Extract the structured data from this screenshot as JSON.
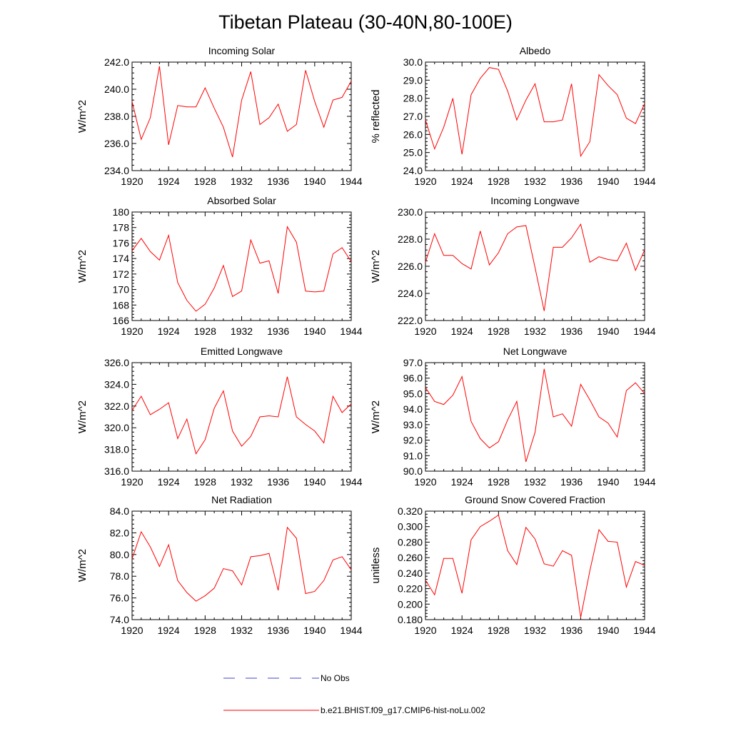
{
  "figure": {
    "title": "Tibetan Plateau (30-40N,80-100E)"
  },
  "legend": {
    "items": [
      {
        "label": "No Obs",
        "color": "#4444cc",
        "style": "dashed"
      },
      {
        "label": "b.e21.BHIST.f09_g17.CMIP6-hist-noLu.002",
        "color": "#ff0000",
        "style": "solid"
      }
    ]
  },
  "chart_data": [
    {
      "type": "line",
      "title": "Incoming Solar",
      "ylabel": "W/m^2",
      "xlim": [
        1920,
        1944
      ],
      "ylim": [
        234.0,
        242.0
      ],
      "yticks": [
        234.0,
        236.0,
        238.0,
        240.0,
        242.0
      ],
      "ytick_labels": [
        "234.0",
        "236.0",
        "238.0",
        "240.0",
        "242.0"
      ],
      "xticks": [
        1920,
        1924,
        1928,
        1932,
        1936,
        1940,
        1944
      ],
      "x": [
        1920,
        1921,
        1922,
        1923,
        1924,
        1925,
        1926,
        1927,
        1928,
        1929,
        1930,
        1931,
        1932,
        1933,
        1934,
        1935,
        1936,
        1937,
        1938,
        1939,
        1940,
        1941,
        1942,
        1943,
        1944
      ],
      "series": [
        {
          "name": "b.e21.BHIST.f09_g17.CMIP6-hist-noLu.002",
          "color": "#ff0000",
          "values": [
            239.1,
            236.3,
            237.9,
            241.7,
            235.9,
            238.8,
            238.7,
            238.7,
            240.1,
            238.6,
            237.2,
            235.0,
            239.2,
            241.3,
            237.4,
            237.9,
            238.9,
            236.9,
            237.4,
            241.4,
            239.1,
            237.2,
            239.2,
            239.4,
            240.6
          ]
        }
      ]
    },
    {
      "type": "line",
      "title": "Albedo",
      "ylabel": "% reflected",
      "xlim": [
        1920,
        1944
      ],
      "ylim": [
        24.0,
        30.0
      ],
      "yticks": [
        24.0,
        25.0,
        26.0,
        27.0,
        28.0,
        29.0,
        30.0
      ],
      "ytick_labels": [
        "24.0",
        "25.0",
        "26.0",
        "27.0",
        "28.0",
        "29.0",
        "30.0"
      ],
      "xticks": [
        1920,
        1924,
        1928,
        1932,
        1936,
        1940,
        1944
      ],
      "x": [
        1920,
        1921,
        1922,
        1923,
        1924,
        1925,
        1926,
        1927,
        1928,
        1929,
        1930,
        1931,
        1932,
        1933,
        1934,
        1935,
        1936,
        1937,
        1938,
        1939,
        1940,
        1941,
        1942,
        1943,
        1944
      ],
      "series": [
        {
          "name": "b.e21.BHIST.f09_g17.CMIP6-hist-noLu.002",
          "color": "#ff0000",
          "values": [
            26.8,
            25.2,
            26.4,
            28.0,
            24.9,
            28.2,
            29.1,
            29.7,
            29.6,
            28.4,
            26.8,
            27.9,
            28.8,
            26.7,
            26.7,
            26.8,
            28.8,
            24.8,
            25.6,
            29.3,
            28.7,
            28.2,
            26.9,
            26.6,
            27.7
          ]
        }
      ]
    },
    {
      "type": "line",
      "title": "Absorbed Solar",
      "ylabel": "W/m^2",
      "xlim": [
        1920,
        1944
      ],
      "ylim": [
        166,
        180
      ],
      "yticks": [
        166,
        168,
        170,
        172,
        174,
        176,
        178,
        180
      ],
      "ytick_labels": [
        "166",
        "168",
        "170",
        "172",
        "174",
        "176",
        "178",
        "180"
      ],
      "xticks": [
        1920,
        1924,
        1928,
        1932,
        1936,
        1940,
        1944
      ],
      "x": [
        1920,
        1921,
        1922,
        1923,
        1924,
        1925,
        1926,
        1927,
        1928,
        1929,
        1930,
        1931,
        1932,
        1933,
        1934,
        1935,
        1936,
        1937,
        1938,
        1939,
        1940,
        1941,
        1942,
        1943,
        1944
      ],
      "series": [
        {
          "name": "b.e21.BHIST.f09_g17.CMIP6-hist-noLu.002",
          "color": "#ff0000",
          "values": [
            175.0,
            176.6,
            174.9,
            173.8,
            177.0,
            170.9,
            168.6,
            167.2,
            168.1,
            170.2,
            173.1,
            169.1,
            169.8,
            176.4,
            173.4,
            173.7,
            169.5,
            178.1,
            176.1,
            169.8,
            169.7,
            169.8,
            174.6,
            175.4,
            173.6
          ]
        }
      ]
    },
    {
      "type": "line",
      "title": "Incoming Longwave",
      "ylabel": "W/m^2",
      "xlim": [
        1920,
        1944
      ],
      "ylim": [
        222.0,
        230.0
      ],
      "yticks": [
        222.0,
        224.0,
        226.0,
        228.0,
        230.0
      ],
      "ytick_labels": [
        "222.0",
        "224.0",
        "226.0",
        "228.0",
        "230.0"
      ],
      "xticks": [
        1920,
        1924,
        1928,
        1932,
        1936,
        1940,
        1944
      ],
      "x": [
        1920,
        1921,
        1922,
        1923,
        1924,
        1925,
        1926,
        1927,
        1928,
        1929,
        1930,
        1931,
        1932,
        1933,
        1934,
        1935,
        1936,
        1937,
        1938,
        1939,
        1940,
        1941,
        1942,
        1943,
        1944
      ],
      "series": [
        {
          "name": "b.e21.BHIST.f09_g17.CMIP6-hist-noLu.002",
          "color": "#ff0000",
          "values": [
            226.3,
            228.4,
            226.8,
            226.8,
            226.2,
            225.8,
            228.6,
            226.1,
            227.0,
            228.4,
            228.9,
            229.0,
            225.9,
            222.7,
            227.4,
            227.4,
            228.1,
            229.1,
            226.3,
            226.7,
            226.5,
            226.4,
            227.7,
            225.7,
            227.2
          ]
        }
      ]
    },
    {
      "type": "line",
      "title": "Emitted Longwave",
      "ylabel": "W/m^2",
      "xlim": [
        1920,
        1944
      ],
      "ylim": [
        316.0,
        326.0
      ],
      "yticks": [
        316.0,
        318.0,
        320.0,
        322.0,
        324.0,
        326.0
      ],
      "ytick_labels": [
        "316.0",
        "318.0",
        "320.0",
        "322.0",
        "324.0",
        "326.0"
      ],
      "xticks": [
        1920,
        1924,
        1928,
        1932,
        1936,
        1940,
        1944
      ],
      "x": [
        1920,
        1921,
        1922,
        1923,
        1924,
        1925,
        1926,
        1927,
        1928,
        1929,
        1930,
        1931,
        1932,
        1933,
        1934,
        1935,
        1936,
        1937,
        1938,
        1939,
        1940,
        1941,
        1942,
        1943,
        1944
      ],
      "series": [
        {
          "name": "b.e21.BHIST.f09_g17.CMIP6-hist-noLu.002",
          "color": "#ff0000",
          "values": [
            321.6,
            322.9,
            321.2,
            321.7,
            322.3,
            319.0,
            320.8,
            317.6,
            318.9,
            321.8,
            323.4,
            319.7,
            318.3,
            319.2,
            321.0,
            321.1,
            321.0,
            324.7,
            321.0,
            320.3,
            319.7,
            318.6,
            322.9,
            321.4,
            322.2
          ]
        }
      ]
    },
    {
      "type": "line",
      "title": "Net Longwave",
      "ylabel": "W/m^2",
      "xlim": [
        1920,
        1944
      ],
      "ylim": [
        90.0,
        97.0
      ],
      "yticks": [
        90.0,
        91.0,
        92.0,
        93.0,
        94.0,
        95.0,
        96.0,
        97.0
      ],
      "ytick_labels": [
        "90.0",
        "91.0",
        "92.0",
        "93.0",
        "94.0",
        "95.0",
        "96.0",
        "97.0"
      ],
      "xticks": [
        1920,
        1924,
        1928,
        1932,
        1936,
        1940,
        1944
      ],
      "x": [
        1920,
        1921,
        1922,
        1923,
        1924,
        1925,
        1926,
        1927,
        1928,
        1929,
        1930,
        1931,
        1932,
        1933,
        1934,
        1935,
        1936,
        1937,
        1938,
        1939,
        1940,
        1941,
        1942,
        1943,
        1944
      ],
      "series": [
        {
          "name": "b.e21.BHIST.f09_g17.CMIP6-hist-noLu.002",
          "color": "#ff0000",
          "values": [
            95.4,
            94.5,
            94.3,
            94.9,
            96.1,
            93.2,
            92.1,
            91.5,
            91.9,
            93.3,
            94.5,
            90.6,
            92.5,
            96.6,
            93.5,
            93.7,
            92.9,
            95.6,
            94.6,
            93.5,
            93.1,
            92.2,
            95.2,
            95.7,
            95.0
          ]
        }
      ]
    },
    {
      "type": "line",
      "title": "Net Radiation",
      "ylabel": "W/m^2",
      "xlim": [
        1920,
        1944
      ],
      "ylim": [
        74.0,
        84.0
      ],
      "yticks": [
        74.0,
        76.0,
        78.0,
        80.0,
        82.0,
        84.0
      ],
      "ytick_labels": [
        "74.0",
        "76.0",
        "78.0",
        "80.0",
        "82.0",
        "84.0"
      ],
      "xticks": [
        1920,
        1924,
        1928,
        1932,
        1936,
        1940,
        1944
      ],
      "x": [
        1920,
        1921,
        1922,
        1923,
        1924,
        1925,
        1926,
        1927,
        1928,
        1929,
        1930,
        1931,
        1932,
        1933,
        1934,
        1935,
        1936,
        1937,
        1938,
        1939,
        1940,
        1941,
        1942,
        1943,
        1944
      ],
      "series": [
        {
          "name": "b.e21.BHIST.f09_g17.CMIP6-hist-noLu.002",
          "color": "#ff0000",
          "values": [
            79.6,
            82.1,
            80.7,
            78.9,
            80.9,
            77.6,
            76.5,
            75.7,
            76.2,
            76.9,
            78.7,
            78.5,
            77.2,
            79.8,
            79.9,
            80.1,
            76.7,
            82.5,
            81.5,
            76.4,
            76.6,
            77.6,
            79.5,
            79.8,
            78.6
          ]
        }
      ]
    },
    {
      "type": "line",
      "title": "Ground Snow Covered Fraction",
      "ylabel": "unitless",
      "xlim": [
        1920,
        1944
      ],
      "ylim": [
        0.18,
        0.32
      ],
      "yticks": [
        0.18,
        0.2,
        0.22,
        0.24,
        0.26,
        0.28,
        0.3,
        0.32
      ],
      "ytick_labels": [
        "0.180",
        "0.200",
        "0.220",
        "0.240",
        "0.260",
        "0.280",
        "0.300",
        "0.320"
      ],
      "xticks": [
        1920,
        1924,
        1928,
        1932,
        1936,
        1940,
        1944
      ],
      "x": [
        1920,
        1921,
        1922,
        1923,
        1924,
        1925,
        1926,
        1927,
        1928,
        1929,
        1930,
        1931,
        1932,
        1933,
        1934,
        1935,
        1936,
        1937,
        1938,
        1939,
        1940,
        1941,
        1942,
        1943,
        1944
      ],
      "series": [
        {
          "name": "b.e21.BHIST.f09_g17.CMIP6-hist-noLu.002",
          "color": "#ff0000",
          "values": [
            0.231,
            0.212,
            0.259,
            0.259,
            0.214,
            0.283,
            0.3,
            0.307,
            0.315,
            0.269,
            0.251,
            0.299,
            0.284,
            0.252,
            0.249,
            0.269,
            0.263,
            0.183,
            0.243,
            0.296,
            0.281,
            0.28,
            0.222,
            0.255,
            0.25
          ]
        }
      ]
    }
  ]
}
